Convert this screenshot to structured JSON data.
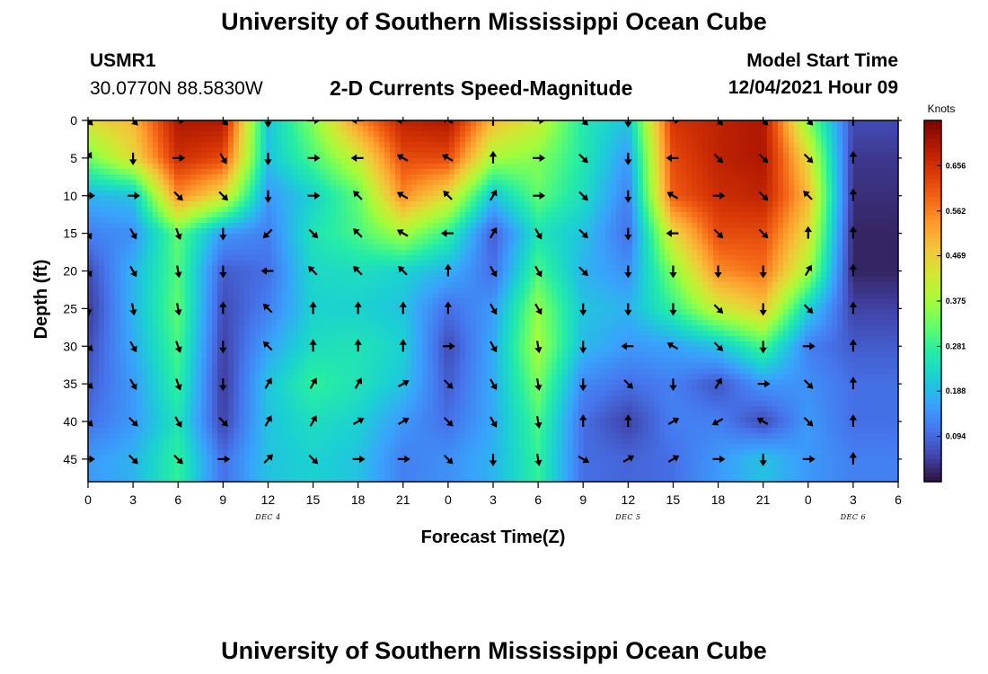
{
  "header": {
    "title": "University of Southern Mississippi Ocean Cube",
    "station": "USMR1",
    "coords": "30.0770N  88.5830W",
    "subtitle": "2-D Currents Speed-Magnitude",
    "model_label": "Model Start Time",
    "model_time": "12/04/2021 Hour 09"
  },
  "footer": {
    "title": "University of Southern Mississippi Ocean Cube"
  },
  "chart_data": {
    "type": "heatmap",
    "title": "2-D Currents Speed-Magnitude",
    "xlabel": "Forecast Time(Z)",
    "ylabel": "Depth (ft)",
    "x_tick_labels": [
      "0",
      "3",
      "6",
      "9",
      "12",
      "15",
      "18",
      "21",
      "0",
      "3",
      "6",
      "9",
      "12",
      "15",
      "18",
      "21",
      "0",
      "3",
      "6"
    ],
    "date_labels": [
      {
        "label": "DEC 4",
        "hour": 12
      },
      {
        "label": "DEC 5",
        "hour": 36
      },
      {
        "label": "DEC 6",
        "hour": 51
      }
    ],
    "xlim_hours": [
      0,
      54
    ],
    "y_ticks": [
      0,
      5,
      10,
      15,
      20,
      25,
      30,
      35,
      40,
      45
    ],
    "ylim": [
      0,
      48
    ],
    "colorbar": {
      "title": "Knots",
      "ticks": [
        0.094,
        0.188,
        0.281,
        0.375,
        0.469,
        0.562,
        0.656
      ],
      "range": [
        0,
        0.75
      ]
    },
    "colormap": [
      "#30123b",
      "#4145ab",
      "#4675ed",
      "#39a2fc",
      "#1bcfd4",
      "#24eca6",
      "#61fc6c",
      "#a4fc3b",
      "#d1e834",
      "#f3c63a",
      "#fe9b2d",
      "#f36315",
      "#d93806",
      "#b11901",
      "#7a0403"
    ],
    "times": [
      0,
      3,
      6,
      9,
      12,
      15,
      18,
      21,
      24,
      27,
      30,
      33,
      36,
      39,
      42,
      45,
      48,
      51
    ],
    "depths": [
      0,
      5,
      10,
      15,
      20,
      25,
      30,
      35,
      40,
      45
    ],
    "speed_knots": [
      [
        0.45,
        0.5,
        0.7,
        0.7,
        0.2,
        0.35,
        0.55,
        0.68,
        0.7,
        0.5,
        0.42,
        0.26,
        0.2,
        0.65,
        0.68,
        0.7,
        0.35,
        0.06
      ],
      [
        0.33,
        0.45,
        0.66,
        0.62,
        0.2,
        0.3,
        0.42,
        0.62,
        0.62,
        0.38,
        0.35,
        0.26,
        0.15,
        0.62,
        0.68,
        0.7,
        0.45,
        0.04
      ],
      [
        0.18,
        0.2,
        0.55,
        0.45,
        0.15,
        0.22,
        0.32,
        0.55,
        0.45,
        0.2,
        0.32,
        0.24,
        0.12,
        0.6,
        0.66,
        0.68,
        0.5,
        0.03
      ],
      [
        0.12,
        0.14,
        0.32,
        0.15,
        0.12,
        0.25,
        0.3,
        0.38,
        0.28,
        0.08,
        0.25,
        0.2,
        0.1,
        0.45,
        0.62,
        0.62,
        0.45,
        0.02
      ],
      [
        0.06,
        0.18,
        0.31,
        0.08,
        0.1,
        0.23,
        0.24,
        0.22,
        0.18,
        0.1,
        0.3,
        0.18,
        0.14,
        0.35,
        0.55,
        0.58,
        0.38,
        0.02
      ],
      [
        0.04,
        0.18,
        0.32,
        0.06,
        0.12,
        0.22,
        0.22,
        0.2,
        0.1,
        0.15,
        0.36,
        0.2,
        0.18,
        0.28,
        0.42,
        0.48,
        0.22,
        0.05
      ],
      [
        0.06,
        0.17,
        0.3,
        0.05,
        0.16,
        0.24,
        0.25,
        0.22,
        0.06,
        0.17,
        0.38,
        0.19,
        0.15,
        0.16,
        0.2,
        0.3,
        0.12,
        0.08
      ],
      [
        0.08,
        0.15,
        0.28,
        0.04,
        0.2,
        0.28,
        0.25,
        0.2,
        0.08,
        0.17,
        0.34,
        0.13,
        0.1,
        0.12,
        0.07,
        0.15,
        0.14,
        0.1
      ],
      [
        0.1,
        0.15,
        0.25,
        0.05,
        0.2,
        0.24,
        0.22,
        0.15,
        0.1,
        0.17,
        0.3,
        0.1,
        0.05,
        0.12,
        0.12,
        0.06,
        0.15,
        0.1
      ],
      [
        0.15,
        0.18,
        0.28,
        0.1,
        0.2,
        0.22,
        0.2,
        0.12,
        0.14,
        0.18,
        0.28,
        0.1,
        0.09,
        0.1,
        0.15,
        0.2,
        0.15,
        0.12
      ]
    ],
    "direction_deg": [
      [
        135,
        135,
        90,
        135,
        180,
        90,
        270,
        270,
        300,
        0,
        90,
        135,
        180,
        90,
        135,
        135,
        135,
        0
      ],
      [
        30,
        180,
        90,
        150,
        180,
        90,
        270,
        300,
        300,
        0,
        90,
        135,
        180,
        270,
        135,
        135,
        135,
        0
      ],
      [
        90,
        90,
        135,
        135,
        180,
        90,
        315,
        300,
        315,
        30,
        90,
        135,
        180,
        300,
        90,
        135,
        315,
        0
      ],
      [
        150,
        150,
        160,
        180,
        225,
        135,
        315,
        300,
        270,
        30,
        150,
        135,
        180,
        270,
        135,
        135,
        0,
        0
      ],
      [
        150,
        150,
        170,
        180,
        270,
        315,
        315,
        315,
        0,
        150,
        150,
        135,
        180,
        180,
        180,
        180,
        30,
        0
      ],
      [
        170,
        170,
        170,
        0,
        315,
        0,
        0,
        0,
        0,
        150,
        150,
        180,
        180,
        180,
        135,
        180,
        135,
        0
      ],
      [
        135,
        150,
        160,
        180,
        315,
        0,
        0,
        0,
        90,
        150,
        170,
        180,
        270,
        300,
        135,
        180,
        90,
        0
      ],
      [
        135,
        150,
        160,
        180,
        30,
        30,
        30,
        60,
        135,
        150,
        170,
        180,
        135,
        180,
        30,
        90,
        135,
        0
      ],
      [
        135,
        135,
        150,
        135,
        30,
        30,
        60,
        60,
        135,
        150,
        170,
        0,
        0,
        60,
        240,
        300,
        135,
        0
      ],
      [
        90,
        135,
        135,
        90,
        45,
        135,
        90,
        90,
        135,
        180,
        170,
        120,
        60,
        60,
        90,
        180,
        90,
        0
      ]
    ]
  }
}
